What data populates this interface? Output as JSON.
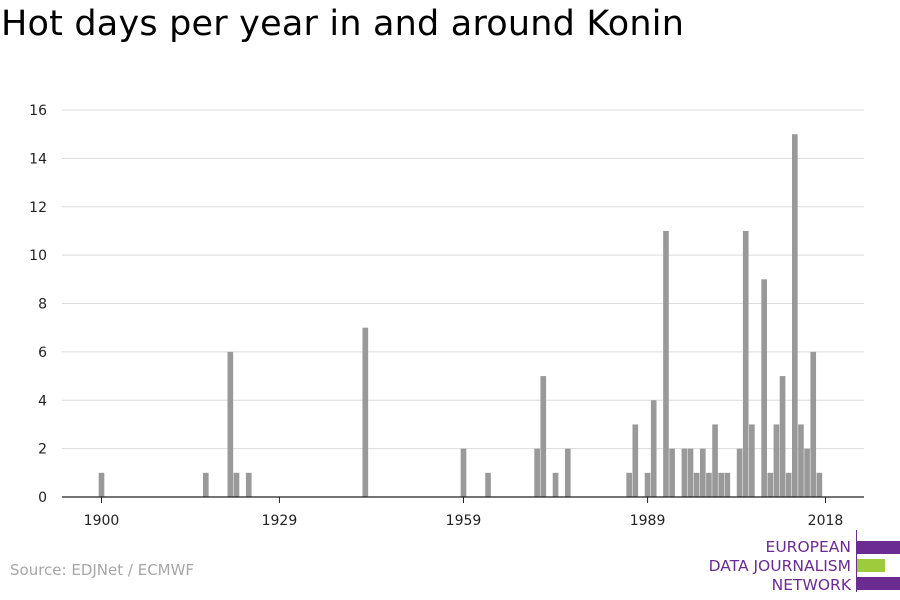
{
  "header": {
    "title": "Hot days per year in and around Konin"
  },
  "footer": {
    "source": "Source: EDJNet / ECMWF"
  },
  "logo": {
    "line1": "EUROPEAN",
    "line2": "DATA JOURNALISM",
    "line3": "NETWORK",
    "colors": {
      "purple": "#6a2c91",
      "green": "#9ecb3b"
    }
  },
  "chart_data": {
    "type": "bar",
    "title": "Hot days per year in and around Konin",
    "xlabel": "",
    "ylabel": "",
    "xlim": [
      1900,
      2018
    ],
    "ylim": [
      0,
      16
    ],
    "xticks": [
      1900,
      1929,
      1959,
      1989,
      2018
    ],
    "yticks": [
      0,
      2,
      4,
      6,
      8,
      10,
      12,
      14,
      16
    ],
    "grid": true,
    "bar_color": "#999999",
    "x": [
      1900,
      1917,
      1921,
      1922,
      1924,
      1943,
      1959,
      1963,
      1971,
      1972,
      1974,
      1976,
      1986,
      1987,
      1989,
      1990,
      1992,
      1993,
      1995,
      1996,
      1997,
      1998,
      1999,
      2000,
      2001,
      2002,
      2004,
      2005,
      2006,
      2008,
      2009,
      2010,
      2011,
      2012,
      2013,
      2014,
      2015,
      2016,
      2017
    ],
    "values": [
      1,
      1,
      6,
      1,
      1,
      7,
      2,
      1,
      2,
      5,
      1,
      2,
      1,
      3,
      1,
      4,
      11,
      2,
      2,
      2,
      1,
      2,
      1,
      3,
      1,
      1,
      2,
      11,
      3,
      9,
      1,
      3,
      5,
      1,
      15,
      3,
      2,
      6,
      1
    ]
  }
}
